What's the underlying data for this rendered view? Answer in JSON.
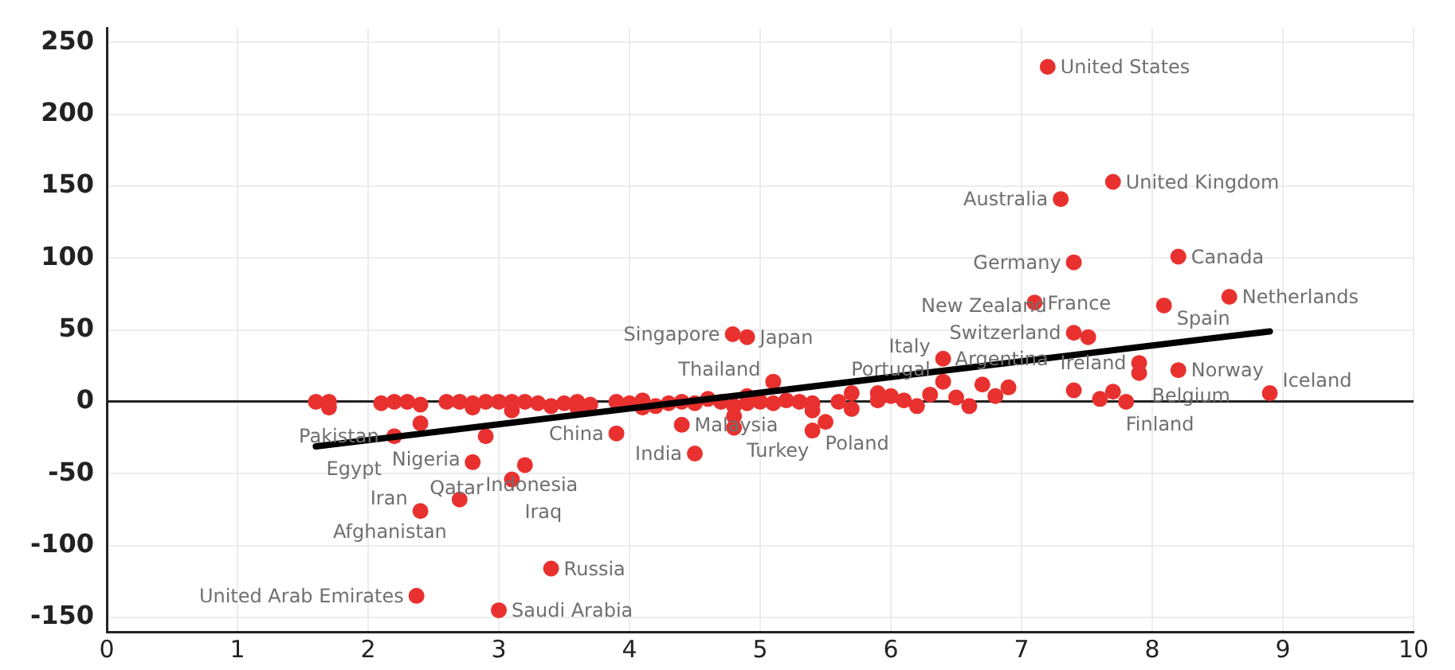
{
  "chart_data": {
    "type": "scatter",
    "xlim": [
      0,
      10
    ],
    "xticks": [
      0,
      1,
      2,
      3,
      4,
      5,
      6,
      7,
      8,
      9,
      10
    ],
    "ylim": [
      -160,
      260
    ],
    "yticks": [
      -150,
      -100,
      -50,
      0,
      50,
      100,
      150,
      200,
      250
    ],
    "grid": true,
    "legend": false,
    "marker": "circle",
    "series": [
      {
        "type": "scatter",
        "color": "#e8312f",
        "x": [
          7.2,
          7.7,
          7.3,
          7.4,
          8.2,
          7.1,
          8.09,
          8.59,
          7.4,
          7.51,
          7.9,
          8.2,
          7.9,
          8.9,
          7.7,
          7.4,
          6.4,
          6.4,
          5.1,
          4.79,
          4.9,
          4.8,
          5.4,
          4.5,
          4.4,
          3.9,
          2.9,
          2.2,
          2.4,
          2.8,
          3.2,
          3.1,
          2.7,
          2.4,
          3.4,
          2.37,
          3.0,
          1.6,
          1.7,
          1.7,
          2.1,
          2.2,
          2.3,
          2.4,
          2.6,
          2.7,
          2.8,
          2.8,
          2.9,
          3.0,
          3.1,
          3.1,
          3.2,
          3.3,
          3.4,
          3.5,
          3.6,
          3.6,
          3.7,
          3.9,
          4.0,
          4.1,
          4.1,
          4.2,
          4.3,
          4.4,
          4.5,
          4.6,
          4.7,
          4.8,
          4.8,
          4.9,
          4.9,
          5.0,
          5.1,
          5.2,
          5.3,
          5.4,
          5.4,
          5.5,
          5.6,
          5.7,
          5.7,
          5.9,
          5.9,
          6.0,
          6.1,
          6.2,
          6.3,
          6.5,
          6.6,
          6.7,
          6.8,
          6.9,
          7.6,
          7.8
        ],
        "values": [
          233,
          153,
          141,
          97,
          101,
          69,
          67,
          73,
          48,
          45,
          27,
          22,
          20,
          6,
          7,
          8,
          30,
          14,
          14,
          47,
          45,
          -18,
          -20,
          -36,
          -16,
          -22,
          -24,
          -24,
          -15,
          -42,
          -44,
          -54,
          -68,
          -76,
          -116,
          -135,
          -145,
          0,
          0,
          -4,
          -1,
          0,
          0,
          -2,
          0,
          0,
          -1,
          -4,
          0,
          0,
          0,
          -6,
          0,
          -1,
          -3,
          -1,
          0,
          -4,
          -2,
          0,
          -1,
          1,
          -4,
          -3,
          -1,
          0,
          -1,
          2,
          0,
          -3,
          -10,
          4,
          -1,
          0,
          -1,
          1,
          0,
          -1,
          -6,
          -14,
          0,
          6,
          -5,
          6,
          1,
          4,
          1,
          -3,
          5,
          3,
          -3,
          12,
          4,
          10,
          2,
          0
        ]
      },
      {
        "type": "line",
        "color": "#000000",
        "marker": "none",
        "x": [
          1.6,
          8.9
        ],
        "values": [
          -31,
          49
        ]
      }
    ],
    "annotations": [
      {
        "text": "United States",
        "x": 7.2,
        "y": 233
      },
      {
        "text": "United Kingdom",
        "x": 7.7,
        "y": 153
      },
      {
        "text": "Australia",
        "x": 7.3,
        "y": 141
      },
      {
        "text": "Germany",
        "x": 7.4,
        "y": 97
      },
      {
        "text": "Canada",
        "x": 8.2,
        "y": 101
      },
      {
        "text": "France",
        "x": 7.1,
        "y": 69
      },
      {
        "text": "Spain",
        "x": 8.09,
        "y": 67
      },
      {
        "text": "Netherlands",
        "x": 8.59,
        "y": 73
      },
      {
        "text": "Switzerland",
        "x": 7.4,
        "y": 48
      },
      {
        "text": "New Zealand",
        "x": 7.51,
        "y": 45
      },
      {
        "text": "Ireland",
        "x": 7.9,
        "y": 27
      },
      {
        "text": "Norway",
        "x": 8.2,
        "y": 22
      },
      {
        "text": "Belgium",
        "x": 7.9,
        "y": 20
      },
      {
        "text": "Iceland",
        "x": 8.9,
        "y": 6
      },
      {
        "text": "Finland",
        "x": 7.7,
        "y": 7
      },
      {
        "text": "Argentina",
        "x": 7.4,
        "y": 8
      },
      {
        "text": "Italy",
        "x": 6.4,
        "y": 30
      },
      {
        "text": "Portugal",
        "x": 6.4,
        "y": 14
      },
      {
        "text": "Thailand",
        "x": 5.1,
        "y": 14
      },
      {
        "text": "Singapore",
        "x": 4.79,
        "y": 47
      },
      {
        "text": "Japan",
        "x": 4.9,
        "y": 45
      },
      {
        "text": "Turkey",
        "x": 4.8,
        "y": -18
      },
      {
        "text": "Poland",
        "x": 5.4,
        "y": -20
      },
      {
        "text": "India",
        "x": 4.5,
        "y": -36
      },
      {
        "text": "Malaysia",
        "x": 4.4,
        "y": -16
      },
      {
        "text": "China",
        "x": 3.9,
        "y": -22
      },
      {
        "text": "Nigeria",
        "x": 2.9,
        "y": -24
      },
      {
        "text": "Egypt",
        "x": 2.2,
        "y": -24
      },
      {
        "text": "Pakistan",
        "x": 2.4,
        "y": -15
      },
      {
        "text": "Indonesia",
        "x": 2.8,
        "y": -42
      },
      {
        "text": "Qatar",
        "x": 3.2,
        "y": -44
      },
      {
        "text": "Iraq",
        "x": 3.1,
        "y": -54
      },
      {
        "text": "Afghanistan",
        "x": 2.7,
        "y": -68
      },
      {
        "text": "Iran",
        "x": 2.4,
        "y": -76
      },
      {
        "text": "Russia",
        "x": 3.4,
        "y": -116
      },
      {
        "text": "United Arab Emirates",
        "x": 2.37,
        "y": -135
      },
      {
        "text": "Saudi Arabia",
        "x": 3.0,
        "y": -145
      }
    ]
  }
}
